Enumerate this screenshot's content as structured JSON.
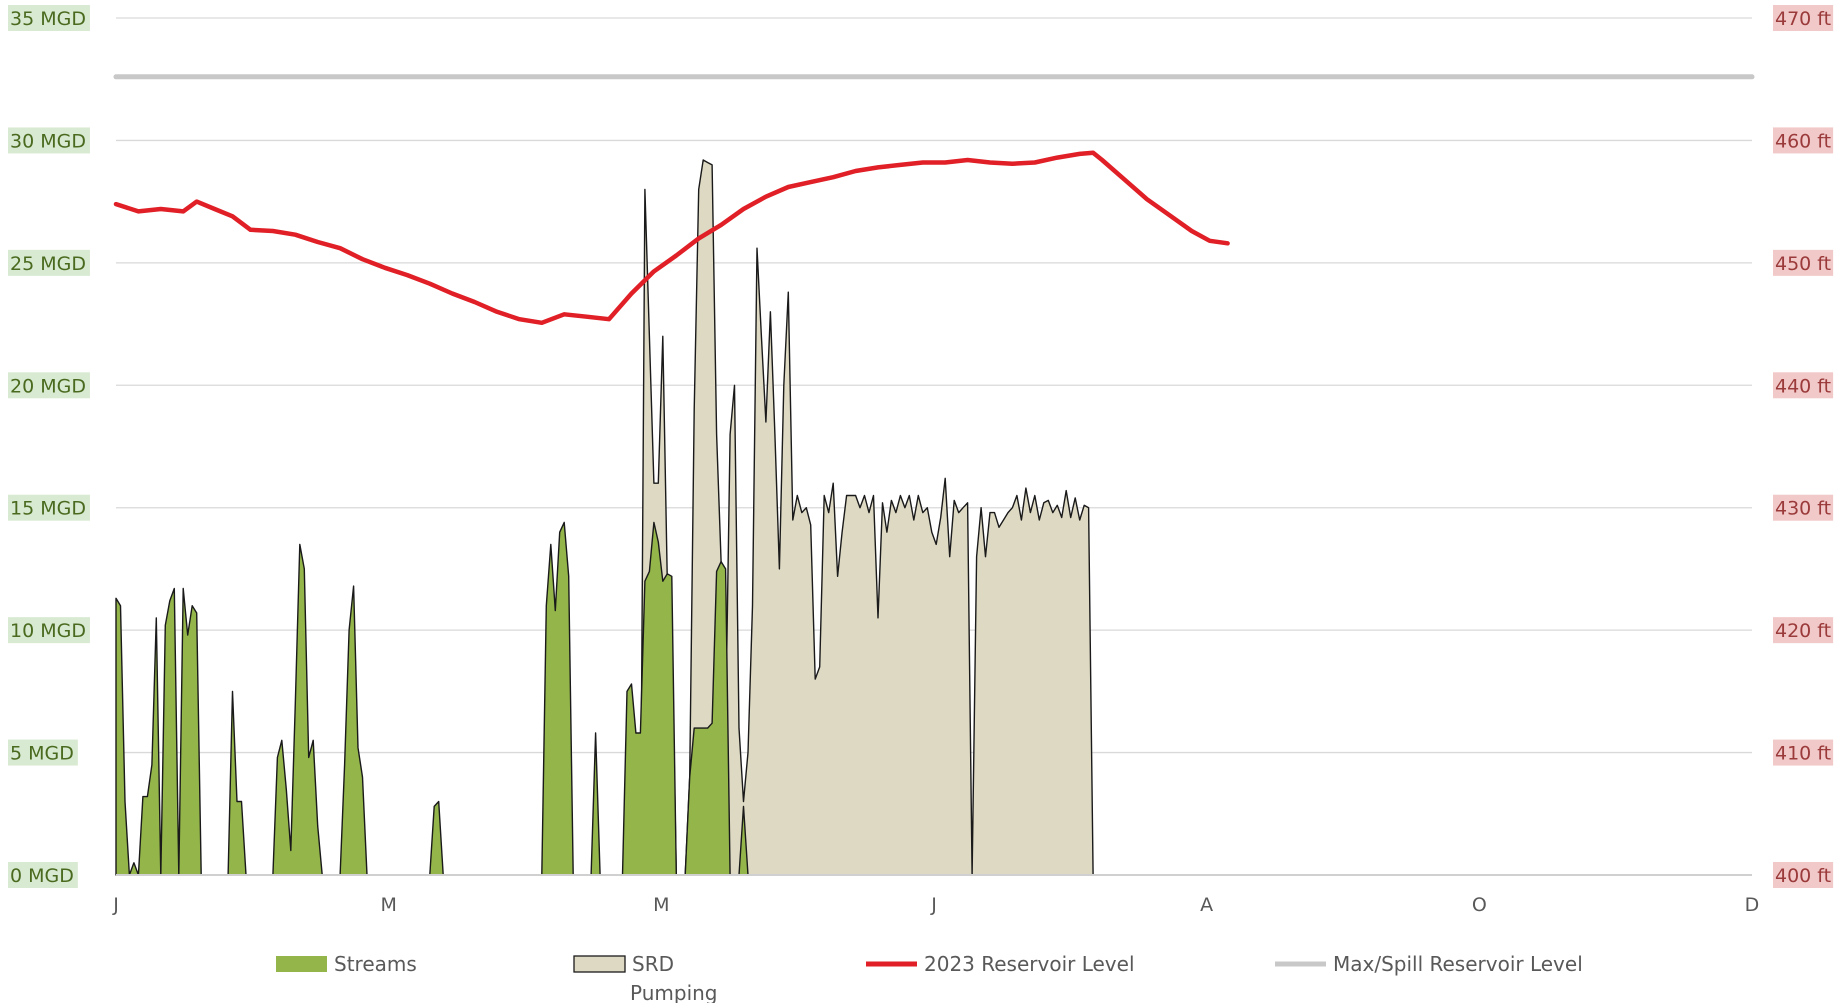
{
  "colors": {
    "streams": "#93b54a",
    "srd": "#ddd9c3",
    "reservoir": "#e01f26",
    "spill": "#c8c8c8",
    "grid": "#d9d9d9",
    "left_label_bg": "#d9ead3",
    "right_label_bg": "#f2c9c9"
  },
  "chart_data": {
    "type": "area",
    "title": "",
    "x_ticks": [
      "J",
      "M",
      "M",
      "J",
      "A",
      "O",
      "D"
    ],
    "x_range_days": [
      0,
      365
    ],
    "left_axis": {
      "unit": "MGD",
      "range": [
        0,
        35
      ],
      "ticks": [
        "0 MGD",
        "5 MGD",
        "10 MGD",
        "15 MGD",
        "20 MGD",
        "25 MGD",
        "30 MGD",
        "35 MGD"
      ]
    },
    "right_axis": {
      "unit": "ft",
      "range": [
        400,
        470
      ],
      "ticks": [
        "400 ft",
        "410 ft",
        "420 ft",
        "430 ft",
        "440 ft",
        "450 ft",
        "460 ft",
        "470 ft"
      ]
    },
    "grid": true,
    "legend_position": "bottom",
    "series": [
      {
        "name": "Streams",
        "kind": "area",
        "axis": "left",
        "points": [
          [
            0,
            11.3
          ],
          [
            1,
            11
          ],
          [
            2,
            3
          ],
          [
            3,
            0
          ],
          [
            4,
            0.5
          ],
          [
            5,
            0
          ],
          [
            6,
            3.2
          ],
          [
            7,
            3.2
          ],
          [
            8,
            4.5
          ],
          [
            9,
            10.5
          ],
          [
            10,
            0
          ],
          [
            11,
            10.2
          ],
          [
            12,
            11.2
          ],
          [
            13,
            11.7
          ],
          [
            14,
            0
          ],
          [
            15,
            11.7
          ],
          [
            16,
            9.8
          ],
          [
            17,
            11
          ],
          [
            18,
            10.7
          ],
          [
            19,
            0
          ],
          [
            25,
            0
          ],
          [
            26,
            7.5
          ],
          [
            27,
            3
          ],
          [
            28,
            3
          ],
          [
            29,
            0
          ],
          [
            35,
            0
          ],
          [
            36,
            4.8
          ],
          [
            37,
            5.5
          ],
          [
            38,
            3.5
          ],
          [
            39,
            1
          ],
          [
            40,
            7
          ],
          [
            41,
            13.5
          ],
          [
            42,
            12.5
          ],
          [
            43,
            4.8
          ],
          [
            44,
            5.5
          ],
          [
            45,
            2
          ],
          [
            46,
            0
          ],
          [
            50,
            0
          ],
          [
            51,
            4.5
          ],
          [
            52,
            10
          ],
          [
            53,
            11.8
          ],
          [
            54,
            5.2
          ],
          [
            55,
            4
          ],
          [
            56,
            0
          ],
          [
            70,
            0
          ],
          [
            71,
            2.8
          ],
          [
            72,
            3
          ],
          [
            73,
            0
          ],
          [
            95,
            0
          ],
          [
            96,
            11
          ],
          [
            97,
            13.5
          ],
          [
            98,
            10.8
          ],
          [
            99,
            14
          ],
          [
            100,
            14.4
          ],
          [
            101,
            12.2
          ],
          [
            102,
            0
          ],
          [
            106,
            0
          ],
          [
            107,
            5.8
          ],
          [
            108,
            0
          ],
          [
            113,
            0
          ],
          [
            114,
            7.5
          ],
          [
            115,
            7.8
          ],
          [
            116,
            5.8
          ],
          [
            117,
            5.8
          ],
          [
            118,
            12
          ],
          [
            119,
            12.4
          ],
          [
            120,
            14.4
          ],
          [
            121,
            13.6
          ],
          [
            122,
            12
          ],
          [
            123,
            12.3
          ],
          [
            124,
            12.2
          ],
          [
            125,
            0
          ],
          [
            127,
            0
          ],
          [
            128,
            4
          ],
          [
            129,
            6
          ],
          [
            130,
            6
          ],
          [
            131,
            6
          ],
          [
            132,
            6
          ],
          [
            133,
            6.2
          ],
          [
            134,
            12.4
          ],
          [
            135,
            12.8
          ],
          [
            136,
            12.5
          ],
          [
            137,
            0
          ],
          [
            139,
            0
          ],
          [
            140,
            2.8
          ],
          [
            141,
            0
          ]
        ]
      },
      {
        "name": "SRD Pumping",
        "kind": "area",
        "axis": "left",
        "points": [
          [
            113,
            0
          ],
          [
            116,
            0
          ],
          [
            117,
            0
          ],
          [
            118,
            28
          ],
          [
            119,
            22
          ],
          [
            120,
            16
          ],
          [
            121,
            16
          ],
          [
            122,
            22
          ],
          [
            123,
            12
          ],
          [
            124,
            10
          ],
          [
            125,
            0
          ],
          [
            127,
            0
          ],
          [
            128,
            4
          ],
          [
            129,
            19
          ],
          [
            130,
            28
          ],
          [
            131,
            29.2
          ],
          [
            132,
            29.1
          ],
          [
            133,
            29
          ],
          [
            134,
            18
          ],
          [
            135,
            12.8
          ],
          [
            136,
            6
          ],
          [
            137,
            18
          ],
          [
            138,
            20
          ],
          [
            139,
            6
          ],
          [
            140,
            3
          ],
          [
            141,
            5
          ],
          [
            142,
            11
          ],
          [
            143,
            25.6
          ],
          [
            144,
            22
          ],
          [
            145,
            18.5
          ],
          [
            146,
            23
          ],
          [
            147,
            18
          ],
          [
            148,
            12.5
          ],
          [
            149,
            20
          ],
          [
            150,
            23.8
          ],
          [
            151,
            14.5
          ],
          [
            152,
            15.5
          ],
          [
            153,
            14.8
          ],
          [
            154,
            15
          ],
          [
            155,
            14.3
          ],
          [
            156,
            8
          ],
          [
            157,
            8.5
          ],
          [
            158,
            15.5
          ],
          [
            159,
            14.8
          ],
          [
            160,
            16
          ],
          [
            161,
            12.2
          ],
          [
            162,
            14
          ],
          [
            163,
            15.5
          ],
          [
            164,
            15.5
          ],
          [
            165,
            15.5
          ],
          [
            166,
            15
          ],
          [
            167,
            15.5
          ],
          [
            168,
            14.8
          ],
          [
            169,
            15.5
          ],
          [
            170,
            10.5
          ],
          [
            171,
            15.2
          ],
          [
            172,
            14
          ],
          [
            173,
            15.3
          ],
          [
            174,
            14.8
          ],
          [
            175,
            15.5
          ],
          [
            176,
            15
          ],
          [
            177,
            15.5
          ],
          [
            178,
            14.5
          ],
          [
            179,
            15.5
          ],
          [
            180,
            14.8
          ],
          [
            181,
            15
          ],
          [
            182,
            14
          ],
          [
            183,
            13.5
          ],
          [
            184,
            14.6
          ],
          [
            185,
            16.2
          ],
          [
            186,
            13
          ],
          [
            187,
            15.3
          ],
          [
            188,
            14.8
          ],
          [
            189,
            15
          ],
          [
            190,
            15.2
          ],
          [
            191,
            0
          ],
          [
            192,
            13
          ],
          [
            193,
            15
          ],
          [
            194,
            13
          ],
          [
            195,
            14.8
          ],
          [
            196,
            14.8
          ],
          [
            197,
            14.2
          ],
          [
            198,
            14.5
          ],
          [
            199,
            14.8
          ],
          [
            200,
            15
          ],
          [
            201,
            15.5
          ],
          [
            202,
            14.5
          ],
          [
            203,
            15.8
          ],
          [
            204,
            14.8
          ],
          [
            205,
            15.5
          ],
          [
            206,
            14.5
          ],
          [
            207,
            15.2
          ],
          [
            208,
            15.3
          ],
          [
            209,
            14.8
          ],
          [
            210,
            15.1
          ],
          [
            211,
            14.6
          ],
          [
            212,
            15.7
          ],
          [
            213,
            14.6
          ],
          [
            214,
            15.4
          ],
          [
            215,
            14.5
          ],
          [
            216,
            15.1
          ],
          [
            217,
            15
          ],
          [
            218,
            0
          ],
          [
            219,
            0
          ]
        ]
      },
      {
        "name": "2023 Reservoir Level",
        "kind": "line",
        "axis": "right",
        "points": [
          [
            0,
            454.8
          ],
          [
            5,
            454.2
          ],
          [
            10,
            454.4
          ],
          [
            15,
            454.2
          ],
          [
            18,
            455
          ],
          [
            22,
            454.4
          ],
          [
            26,
            453.8
          ],
          [
            30,
            452.7
          ],
          [
            35,
            452.6
          ],
          [
            40,
            452.3
          ],
          [
            45,
            451.7
          ],
          [
            50,
            451.2
          ],
          [
            55,
            450.3
          ],
          [
            60,
            449.6
          ],
          [
            65,
            449
          ],
          [
            70,
            448.3
          ],
          [
            75,
            447.5
          ],
          [
            80,
            446.8
          ],
          [
            85,
            446
          ],
          [
            90,
            445.4
          ],
          [
            95,
            445.1
          ],
          [
            100,
            445.8
          ],
          [
            105,
            445.6
          ],
          [
            110,
            445.4
          ],
          [
            115,
            447.5
          ],
          [
            120,
            449.3
          ],
          [
            125,
            450.6
          ],
          [
            130,
            452
          ],
          [
            135,
            453.1
          ],
          [
            140,
            454.4
          ],
          [
            145,
            455.4
          ],
          [
            150,
            456.2
          ],
          [
            155,
            456.6
          ],
          [
            160,
            457
          ],
          [
            165,
            457.5
          ],
          [
            170,
            457.8
          ],
          [
            175,
            458
          ],
          [
            180,
            458.2
          ],
          [
            185,
            458.2
          ],
          [
            190,
            458.4
          ],
          [
            195,
            458.2
          ],
          [
            200,
            458.1
          ],
          [
            205,
            458.2
          ],
          [
            210,
            458.6
          ],
          [
            215,
            458.9
          ],
          [
            218,
            459
          ],
          [
            220,
            458.4
          ],
          [
            225,
            456.8
          ],
          [
            230,
            455.2
          ],
          [
            235,
            453.9
          ],
          [
            240,
            452.6
          ],
          [
            244,
            451.8
          ],
          [
            248,
            451.6
          ]
        ]
      },
      {
        "name": "Max/Spill Reservoir Level",
        "kind": "line",
        "axis": "right",
        "points": [
          [
            0,
            465.2
          ],
          [
            365,
            465.2
          ]
        ]
      }
    ],
    "legend": [
      {
        "key": "streams",
        "label": "Streams",
        "label2": ""
      },
      {
        "key": "srd",
        "label": "SRD",
        "label2": "Pumping"
      },
      {
        "key": "reservoir",
        "label": "2023 Reservoir Level",
        "label2": ""
      },
      {
        "key": "spill",
        "label": "Max/Spill Reservoir Level",
        "label2": ""
      }
    ]
  }
}
